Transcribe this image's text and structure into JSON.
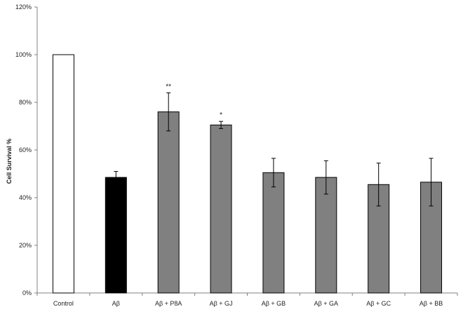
{
  "chart_data": {
    "type": "bar",
    "title": "",
    "xlabel": "",
    "ylabel": "Cell Survival  %",
    "ylim": [
      0,
      120
    ],
    "yticks": [
      0,
      20,
      40,
      60,
      80,
      100,
      120
    ],
    "ytick_suffix": "%",
    "grid": false,
    "legend": "none",
    "categories": [
      "Control",
      "Aβ",
      "Aβ + P8A",
      "Aβ + GJ",
      "Aβ + GB",
      "Aβ + GA",
      "Aβ + GC",
      "Aβ + BB"
    ],
    "values": [
      100,
      48.5,
      76,
      70.5,
      50.5,
      48.5,
      45.5,
      46.5
    ],
    "errors": [
      0,
      2.5,
      8,
      1.5,
      6,
      7,
      9,
      10
    ],
    "significance": [
      "",
      "",
      "**",
      "*",
      "",
      "",
      "",
      ""
    ],
    "colors": {
      "control_fill": "#ffffff",
      "abeta_fill": "#000000",
      "treatment_fill": "#808080",
      "outline": "#000000",
      "axis": "#808080"
    },
    "fill_per_bar": [
      "#ffffff",
      "#000000",
      "#808080",
      "#808080",
      "#808080",
      "#808080",
      "#808080",
      "#808080"
    ]
  }
}
